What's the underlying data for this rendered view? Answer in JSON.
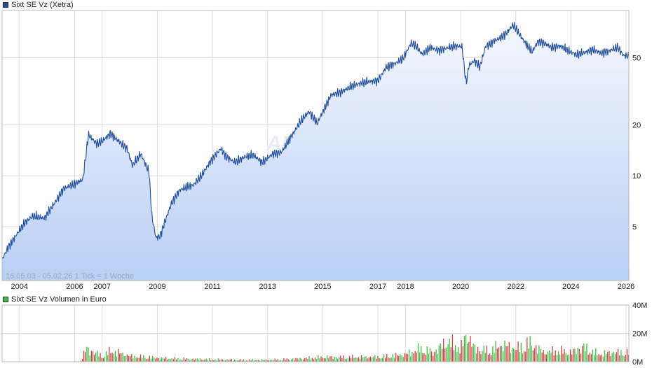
{
  "price_chart": {
    "legend": "Sixt SE Vz (Xetra)",
    "line_color": "#1f4e9c",
    "info_text": "16.05.03 - 05.02.26   1 Tick = 1 Woche",
    "watermark": "ARIVA.DE"
  },
  "volume_chart": {
    "legend": "Sixt SE Vz Volumen in Euro",
    "up_color": "#3fbf3f",
    "down_color": "#d04040"
  },
  "chart_data": [
    {
      "type": "area",
      "title": "Sixt SE Vz (Xetra)",
      "x_ticks": [
        "2004",
        "2006",
        "2007",
        "2009",
        "2011",
        "2013",
        "2015",
        "2017",
        "2018",
        "2020",
        "2022",
        "2024",
        "2026"
      ],
      "y_ticks": [
        5,
        10,
        20,
        50
      ],
      "y_scale": "log",
      "ylim": [
        2.4,
        95
      ],
      "xlim": [
        2003.37,
        2026.1
      ],
      "series": [
        {
          "x": [
            2003.37,
            2003.6,
            2003.9,
            2004.2,
            2004.5,
            2004.9,
            2005.3,
            2005.6,
            2005.9,
            2006.3,
            2006.5,
            2006.8,
            2007.0,
            2007.3,
            2007.6,
            2007.9,
            2008.1,
            2008.4,
            2008.7,
            2008.8,
            2008.95,
            2009.1,
            2009.3,
            2009.5,
            2009.8,
            2010.0,
            2010.3,
            2010.6,
            2010.9,
            2011.3,
            2011.5,
            2011.8,
            2012.2,
            2012.5,
            2012.8,
            2013.2,
            2013.5,
            2013.9,
            2014.2,
            2014.5,
            2014.8,
            2015.0,
            2015.3,
            2015.6,
            2016.0,
            2016.3,
            2016.6,
            2017.0,
            2017.3,
            2017.6,
            2017.9,
            2018.2,
            2018.4,
            2018.6,
            2018.9,
            2019.2,
            2019.5,
            2019.8,
            2020.05,
            2020.2,
            2020.3,
            2020.5,
            2020.7,
            2020.9,
            2021.2,
            2021.5,
            2021.7,
            2021.9,
            2022.1,
            2022.3,
            2022.6,
            2022.8,
            2023.1,
            2023.3,
            2023.6,
            2023.9,
            2024.2,
            2024.5,
            2024.8,
            2025.1,
            2025.4,
            2025.7,
            2025.9,
            2026.1
          ],
          "y": [
            3.2,
            3.8,
            4.5,
            5.3,
            5.8,
            5.6,
            7.0,
            8.4,
            8.8,
            9.5,
            17.5,
            15.5,
            16.0,
            17.8,
            16.0,
            14.5,
            11.5,
            13.5,
            10.5,
            5.8,
            4.3,
            4.4,
            5.5,
            6.8,
            8.2,
            8.5,
            8.8,
            10.0,
            12.0,
            14.5,
            13.0,
            12.0,
            13.0,
            13.2,
            12.0,
            13.5,
            13.8,
            17.5,
            21.0,
            24.0,
            20.5,
            24.0,
            30.0,
            31.0,
            33.5,
            35.0,
            36.0,
            36.5,
            44.0,
            46.0,
            49.0,
            61.0,
            58.0,
            52.5,
            57.5,
            55.0,
            57.0,
            58.5,
            58.0,
            35.0,
            45.0,
            48.0,
            44.0,
            58.0,
            62.5,
            66.0,
            71.0,
            78.0,
            70.0,
            62.5,
            54.0,
            62.5,
            60.0,
            57.5,
            58.5,
            55.0,
            52.0,
            53.5,
            56.0,
            53.0,
            55.0,
            57.5,
            51.5,
            51.0
          ]
        }
      ]
    },
    {
      "type": "bar",
      "title": "Sixt SE Vz Volumen in Euro",
      "y_ticks": [
        "0M",
        "20M",
        "40M"
      ],
      "ylim": [
        0,
        40
      ],
      "xlim": [
        2003.37,
        2026.1
      ],
      "series": [
        {
          "x": [
            2003.37,
            2005.0,
            2006.2,
            2006.4,
            2007.0,
            2007.3,
            2008.0,
            2008.7,
            2009.0,
            2010.0,
            2011.0,
            2012.0,
            2013.0,
            2014.0,
            2015.0,
            2016.0,
            2017.0,
            2018.0,
            2018.5,
            2019.0,
            2019.5,
            2020.0,
            2020.2,
            2020.5,
            2021.0,
            2021.5,
            2022.0,
            2022.5,
            2023.0,
            2023.5,
            2024.0,
            2024.4,
            2025.0,
            2025.5,
            2026.1
          ],
          "y": [
            0,
            0,
            0.5,
            14,
            6,
            12,
            6,
            5,
            4,
            3,
            2.5,
            2,
            2,
            3,
            5,
            5,
            5,
            8,
            14,
            10,
            22,
            15,
            30,
            14,
            12,
            18,
            14,
            20,
            10,
            12,
            10,
            16,
            8,
            10,
            10
          ]
        }
      ]
    }
  ]
}
